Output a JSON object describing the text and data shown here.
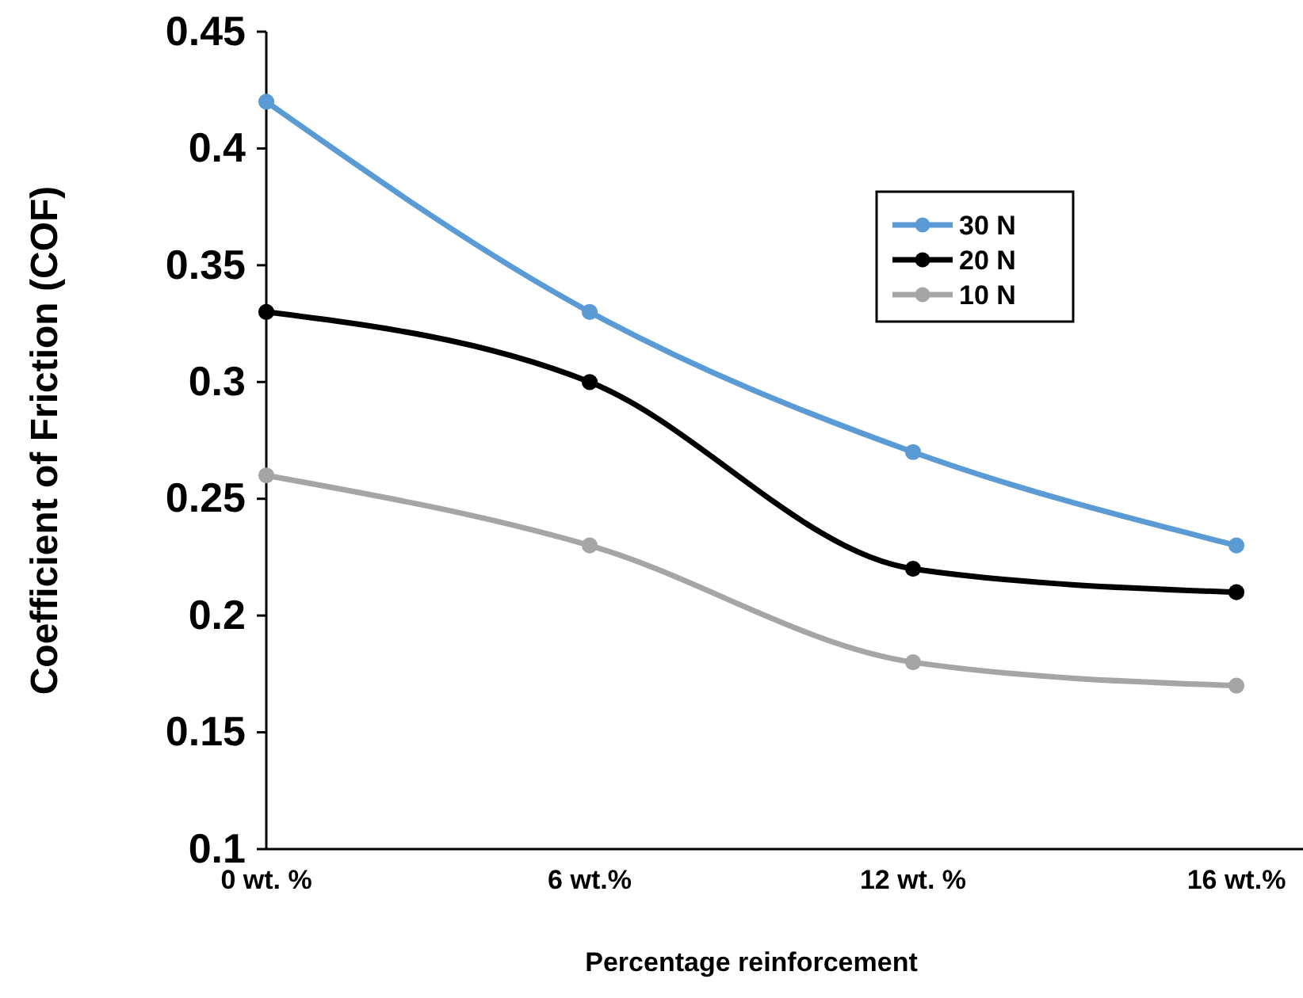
{
  "chart_data": {
    "type": "line",
    "xlabel": "Percentage reinforcement",
    "ylabel": "Coefficient of Friction (COF)",
    "categories": [
      "0 wt. %",
      "6 wt.%",
      "12 wt. %",
      "16 wt.%"
    ],
    "series": [
      {
        "name": "30 N",
        "color": "#5b9bd5",
        "values": [
          0.42,
          0.33,
          0.27,
          0.23
        ]
      },
      {
        "name": "20 N",
        "color": "#000000",
        "values": [
          0.33,
          0.3,
          0.22,
          0.21
        ]
      },
      {
        "name": "10 N",
        "color": "#a5a5a5",
        "values": [
          0.26,
          0.23,
          0.18,
          0.17
        ]
      }
    ],
    "ylim": [
      0.1,
      0.45
    ],
    "yticks": [
      0.1,
      0.15,
      0.2,
      0.25,
      0.3,
      0.35,
      0.4,
      0.45
    ],
    "grid": false,
    "legend": "top right",
    "marker": "circle",
    "line_style": "solid"
  }
}
